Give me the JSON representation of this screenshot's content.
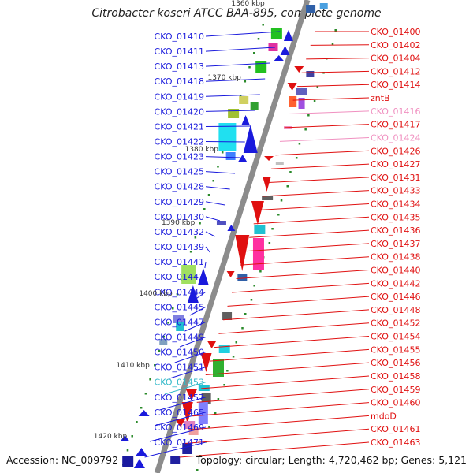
{
  "title": "Citrobacter koseri ATCC BAA-895, complete genome",
  "footer": {
    "accession": "Accession: NC_009792",
    "summary": "Topology: circular; Length: 4,720,462 bp; Genes: 5,121"
  },
  "scale_labels": [
    "1360 kbp",
    "1370 kbp",
    "1380 kbp",
    "1390 kbp",
    "1400 kbp",
    "1410 kbp",
    "1420 kbp"
  ],
  "left_labels": [
    {
      "text": "CKO_01410",
      "color": "#1a1adc"
    },
    {
      "text": "CKO_01411",
      "color": "#1a1adc"
    },
    {
      "text": "CKO_01413",
      "color": "#1a1adc"
    },
    {
      "text": "CKO_01418",
      "color": "#1a1adc"
    },
    {
      "text": "CKO_01419",
      "color": "#1a1adc"
    },
    {
      "text": "CKO_01420",
      "color": "#1a1adc"
    },
    {
      "text": "CKO_01421",
      "color": "#1a1adc"
    },
    {
      "text": "CKO_01422",
      "color": "#1a1adc"
    },
    {
      "text": "CKO_01423",
      "color": "#1a1adc"
    },
    {
      "text": "CKO_01425",
      "color": "#1a1adc"
    },
    {
      "text": "CKO_01428",
      "color": "#1a1adc"
    },
    {
      "text": "CKO_01429",
      "color": "#1a1adc"
    },
    {
      "text": "CKO_01430",
      "color": "#1a1adc"
    },
    {
      "text": "CKO_01432",
      "color": "#1a1adc"
    },
    {
      "text": "CKO_01439",
      "color": "#1a1adc"
    },
    {
      "text": "CKO_01441",
      "color": "#1a1adc"
    },
    {
      "text": "CKO_01443",
      "color": "#1a1adc"
    },
    {
      "text": "CKO_01444",
      "color": "#1a1adc"
    },
    {
      "text": "CKO_01445",
      "color": "#1a1adc"
    },
    {
      "text": "CKO_01447",
      "color": "#1a1adc"
    },
    {
      "text": "CKO_01449",
      "color": "#1a1adc"
    },
    {
      "text": "CKO_01450",
      "color": "#1a1adc"
    },
    {
      "text": "CKO_01451",
      "color": "#1a1adc"
    },
    {
      "text": "CKO_01453",
      "color": "#30b8c8"
    },
    {
      "text": "CKO_01457",
      "color": "#1a1adc"
    },
    {
      "text": "CKO_01465",
      "color": "#1a1adc"
    },
    {
      "text": "CKO_01469",
      "color": "#1a1adc"
    },
    {
      "text": "CKO_01471",
      "color": "#1a1adc"
    }
  ],
  "right_labels": [
    {
      "text": "CKO_01400",
      "color": "#e01010"
    },
    {
      "text": "CKO_01402",
      "color": "#e01010"
    },
    {
      "text": "CKO_01404",
      "color": "#e01010"
    },
    {
      "text": "CKO_01412",
      "color": "#e01010"
    },
    {
      "text": "CKO_01414",
      "color": "#e01010"
    },
    {
      "text": "zntB",
      "color": "#e01010"
    },
    {
      "text": "CKO_01416",
      "color": "#f090c0"
    },
    {
      "text": "CKO_01417",
      "color": "#e01010"
    },
    {
      "text": "CKO_01424",
      "color": "#f090c0"
    },
    {
      "text": "CKO_01426",
      "color": "#e01010"
    },
    {
      "text": "CKO_01427",
      "color": "#e01010"
    },
    {
      "text": "CKO_01431",
      "color": "#e01010"
    },
    {
      "text": "CKO_01433",
      "color": "#e01010"
    },
    {
      "text": "CKO_01434",
      "color": "#e01010"
    },
    {
      "text": "CKO_01435",
      "color": "#e01010"
    },
    {
      "text": "CKO_01436",
      "color": "#e01010"
    },
    {
      "text": "CKO_01437",
      "color": "#e01010"
    },
    {
      "text": "CKO_01438",
      "color": "#e01010"
    },
    {
      "text": "CKO_01440",
      "color": "#e01010"
    },
    {
      "text": "CKO_01442",
      "color": "#e01010"
    },
    {
      "text": "CKO_01446",
      "color": "#e01010"
    },
    {
      "text": "CKO_01448",
      "color": "#e01010"
    },
    {
      "text": "CKO_01452",
      "color": "#e01010"
    },
    {
      "text": "CKO_01454",
      "color": "#e01010"
    },
    {
      "text": "CKO_01455",
      "color": "#e01010"
    },
    {
      "text": "CKO_01456",
      "color": "#e01010"
    },
    {
      "text": "CKO_01458",
      "color": "#e01010"
    },
    {
      "text": "CKO_01459",
      "color": "#e01010"
    },
    {
      "text": "CKO_01460",
      "color": "#e01010"
    },
    {
      "text": "mdoD",
      "color": "#e01010"
    },
    {
      "text": "CKO_01461",
      "color": "#e01010"
    },
    {
      "text": "CKO_01463",
      "color": "#e01010"
    }
  ],
  "colors": {
    "backbone": "#8c8c8c",
    "forward_strand": "#e01010",
    "reverse_strand": "#1a1adc",
    "tick": "#2a8a2a"
  }
}
